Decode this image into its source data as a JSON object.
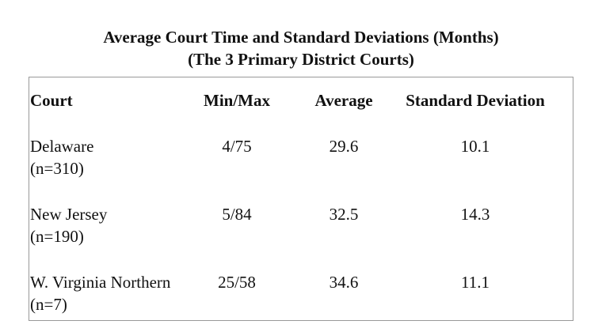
{
  "title": {
    "line1": "Average Court Time and Standard Deviations (Months)",
    "line2": "(The 3 Primary District Courts)"
  },
  "table": {
    "header": [
      "Court",
      "Min/Max",
      "Average",
      "Standard Deviation"
    ],
    "rows": [
      {
        "court": "Delaware",
        "n": "(n=310)",
        "minmax": "4/75",
        "average": 29.6,
        "sd": 10.1
      },
      {
        "court": "New Jersey",
        "n": "(n=190)",
        "minmax": "5/84",
        "average": 32.5,
        "sd": 14.3
      },
      {
        "court": "W. Virginia Northern",
        "n": "(n=7)",
        "minmax": "25/58",
        "average": 34.6,
        "sd": 11.1
      }
    ]
  }
}
